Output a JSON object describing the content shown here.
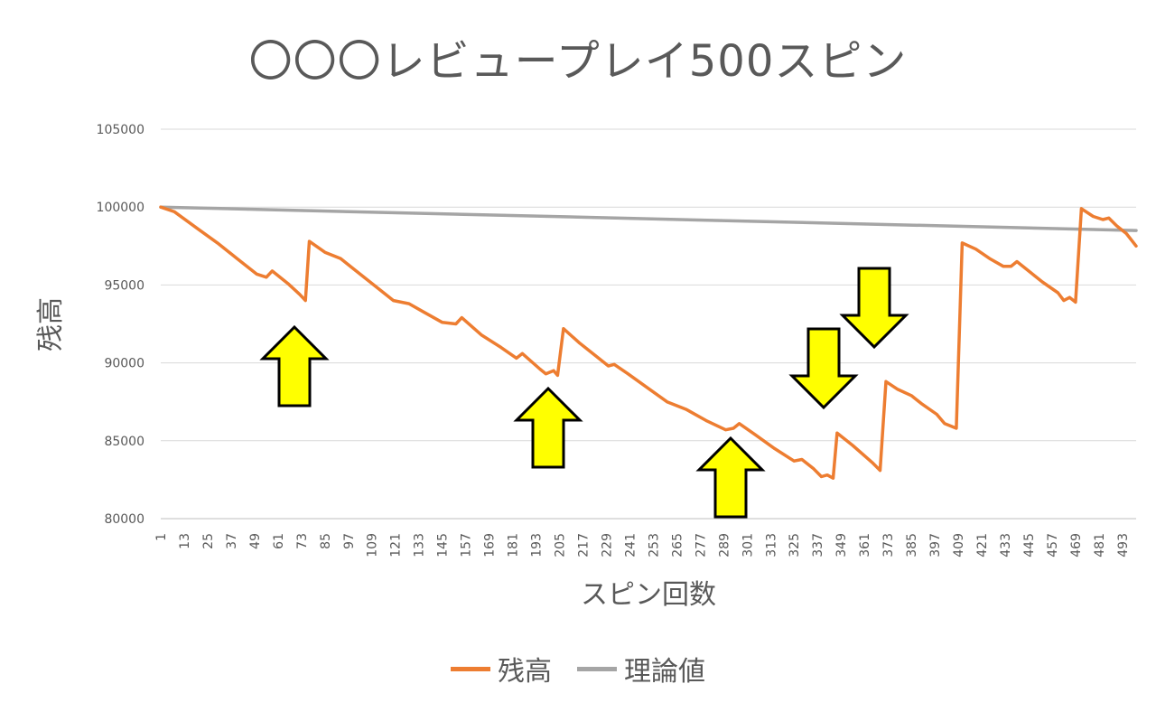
{
  "chart_data": {
    "type": "line",
    "title": "〇〇〇レビュープレイ500スピン",
    "xlabel": "スピン回数",
    "ylabel": "残高",
    "ylim": [
      80000,
      105000
    ],
    "y_ticks": [
      "80000",
      "85000",
      "90000",
      "95000",
      "100000",
      "105000"
    ],
    "x_ticks": [
      "1",
      "13",
      "25",
      "37",
      "49",
      "61",
      "73",
      "85",
      "97",
      "109",
      "121",
      "133",
      "145",
      "157",
      "169",
      "181",
      "193",
      "205",
      "217",
      "229",
      "241",
      "253",
      "265",
      "277",
      "289",
      "301",
      "313",
      "325",
      "337",
      "349",
      "361",
      "373",
      "385",
      "397",
      "409",
      "421",
      "433",
      "445",
      "457",
      "469",
      "481",
      "493"
    ],
    "xlim": [
      1,
      500
    ],
    "grid": true,
    "legend_position": "bottom",
    "series": [
      {
        "name": "残高",
        "color": "#ed7d31",
        "points": [
          [
            1,
            100000
          ],
          [
            8,
            99700
          ],
          [
            20,
            98600
          ],
          [
            30,
            97700
          ],
          [
            40,
            96700
          ],
          [
            50,
            95700
          ],
          [
            55,
            95500
          ],
          [
            58,
            95900
          ],
          [
            66,
            95100
          ],
          [
            72,
            94400
          ],
          [
            75,
            94000
          ],
          [
            77,
            97800
          ],
          [
            85,
            97100
          ],
          [
            93,
            96700
          ],
          [
            100,
            96000
          ],
          [
            110,
            95000
          ],
          [
            120,
            94000
          ],
          [
            128,
            93800
          ],
          [
            135,
            93300
          ],
          [
            145,
            92600
          ],
          [
            152,
            92500
          ],
          [
            155,
            92900
          ],
          [
            165,
            91800
          ],
          [
            175,
            91000
          ],
          [
            183,
            90300
          ],
          [
            186,
            90600
          ],
          [
            195,
            89600
          ],
          [
            198,
            89300
          ],
          [
            202,
            89500
          ],
          [
            204,
            89200
          ],
          [
            207,
            92200
          ],
          [
            215,
            91300
          ],
          [
            225,
            90300
          ],
          [
            230,
            89800
          ],
          [
            233,
            89900
          ],
          [
            240,
            89300
          ],
          [
            250,
            88400
          ],
          [
            260,
            87500
          ],
          [
            270,
            87000
          ],
          [
            280,
            86300
          ],
          [
            290,
            85700
          ],
          [
            294,
            85800
          ],
          [
            297,
            86100
          ],
          [
            305,
            85400
          ],
          [
            315,
            84500
          ],
          [
            325,
            83700
          ],
          [
            329,
            83800
          ],
          [
            335,
            83200
          ],
          [
            339,
            82700
          ],
          [
            342,
            82800
          ],
          [
            345,
            82600
          ],
          [
            347,
            85500
          ],
          [
            355,
            84700
          ],
          [
            365,
            83600
          ],
          [
            369,
            83100
          ],
          [
            372,
            88800
          ],
          [
            378,
            88300
          ],
          [
            385,
            87900
          ],
          [
            390,
            87400
          ],
          [
            398,
            86700
          ],
          [
            402,
            86100
          ],
          [
            408,
            85800
          ],
          [
            411,
            97700
          ],
          [
            418,
            97300
          ],
          [
            425,
            96700
          ],
          [
            432,
            96200
          ],
          [
            436,
            96200
          ],
          [
            439,
            96500
          ],
          [
            445,
            95900
          ],
          [
            452,
            95200
          ],
          [
            460,
            94500
          ],
          [
            463,
            94000
          ],
          [
            466,
            94200
          ],
          [
            469,
            93900
          ],
          [
            472,
            99900
          ],
          [
            478,
            99400
          ],
          [
            483,
            99200
          ],
          [
            486,
            99300
          ],
          [
            490,
            98800
          ],
          [
            495,
            98300
          ],
          [
            500,
            97500
          ]
        ]
      },
      {
        "name": "理論値",
        "color": "#a5a5a5",
        "points": [
          [
            1,
            100000
          ],
          [
            500,
            98500
          ]
        ]
      }
    ]
  }
}
